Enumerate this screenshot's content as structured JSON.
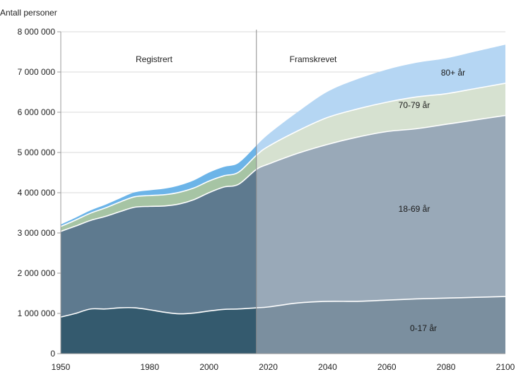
{
  "chart_data": {
    "type": "area",
    "stacked": true,
    "ylabel": "Antall personer",
    "xlim": [
      1950,
      2100
    ],
    "ylim": [
      0,
      8000000
    ],
    "x_ticks": [
      1950,
      1980,
      2000,
      2020,
      2040,
      2060,
      2080,
      2100
    ],
    "x_tick_labels": [
      "1950",
      "1980",
      "2000",
      "2020",
      "2040",
      "2060",
      "2080",
      "2100"
    ],
    "y_ticks": [
      0,
      1000000,
      2000000,
      3000000,
      4000000,
      5000000,
      6000000,
      7000000,
      8000000
    ],
    "y_tick_labels": [
      "0",
      "1 000 000",
      "2 000 000",
      "3 000 000",
      "4 000 000",
      "5 000 000",
      "6 000 000",
      "7 000 000",
      "8 000 000"
    ],
    "grid": "horizontal",
    "split_year": 2016,
    "period_labels": {
      "registered": "Registrert",
      "projected": "Framskrevet"
    },
    "x": [
      1950,
      1955,
      1960,
      1965,
      1970,
      1975,
      1980,
      1985,
      1990,
      1995,
      2000,
      2005,
      2010,
      2016,
      2020,
      2030,
      2040,
      2050,
      2060,
      2070,
      2080,
      2090,
      2100
    ],
    "series": [
      {
        "name": "0-17 år",
        "colors": {
          "registered": "#345a6e",
          "projected": "#7b8f9f"
        },
        "values": [
          910000,
          1000000,
          1110000,
          1110000,
          1140000,
          1140000,
          1090000,
          1030000,
          990000,
          1010000,
          1060000,
          1100000,
          1110000,
          1140000,
          1160000,
          1260000,
          1300000,
          1300000,
          1330000,
          1360000,
          1380000,
          1400000,
          1420000
        ]
      },
      {
        "name": "18-69 år",
        "colors": {
          "registered": "#5e7a8f",
          "projected": "#99a9b8"
        },
        "values": [
          2130000,
          2170000,
          2200000,
          2300000,
          2390000,
          2500000,
          2570000,
          2640000,
          2730000,
          2820000,
          2940000,
          3040000,
          3100000,
          3440000,
          3550000,
          3720000,
          3900000,
          4080000,
          4190000,
          4230000,
          4320000,
          4410000,
          4500000
        ]
      },
      {
        "name": "70-79 år",
        "colors": {
          "registered": "#a6c4a4",
          "projected": "#d6e1d0"
        },
        "values": [
          120000,
          150000,
          180000,
          210000,
          240000,
          260000,
          270000,
          280000,
          290000,
          290000,
          290000,
          280000,
          300000,
          350000,
          440000,
          560000,
          670000,
          700000,
          730000,
          790000,
          760000,
          780000,
          800000
        ]
      },
      {
        "name": "80+ år",
        "colors": {
          "registered": "#6cb4e8",
          "projected": "#b5d6f3"
        },
        "values": [
          50000,
          60000,
          70000,
          80000,
          90000,
          110000,
          130000,
          150000,
          170000,
          190000,
          210000,
          220000,
          230000,
          240000,
          300000,
          470000,
          640000,
          740000,
          810000,
          850000,
          880000,
          920000,
          960000
        ]
      }
    ]
  }
}
